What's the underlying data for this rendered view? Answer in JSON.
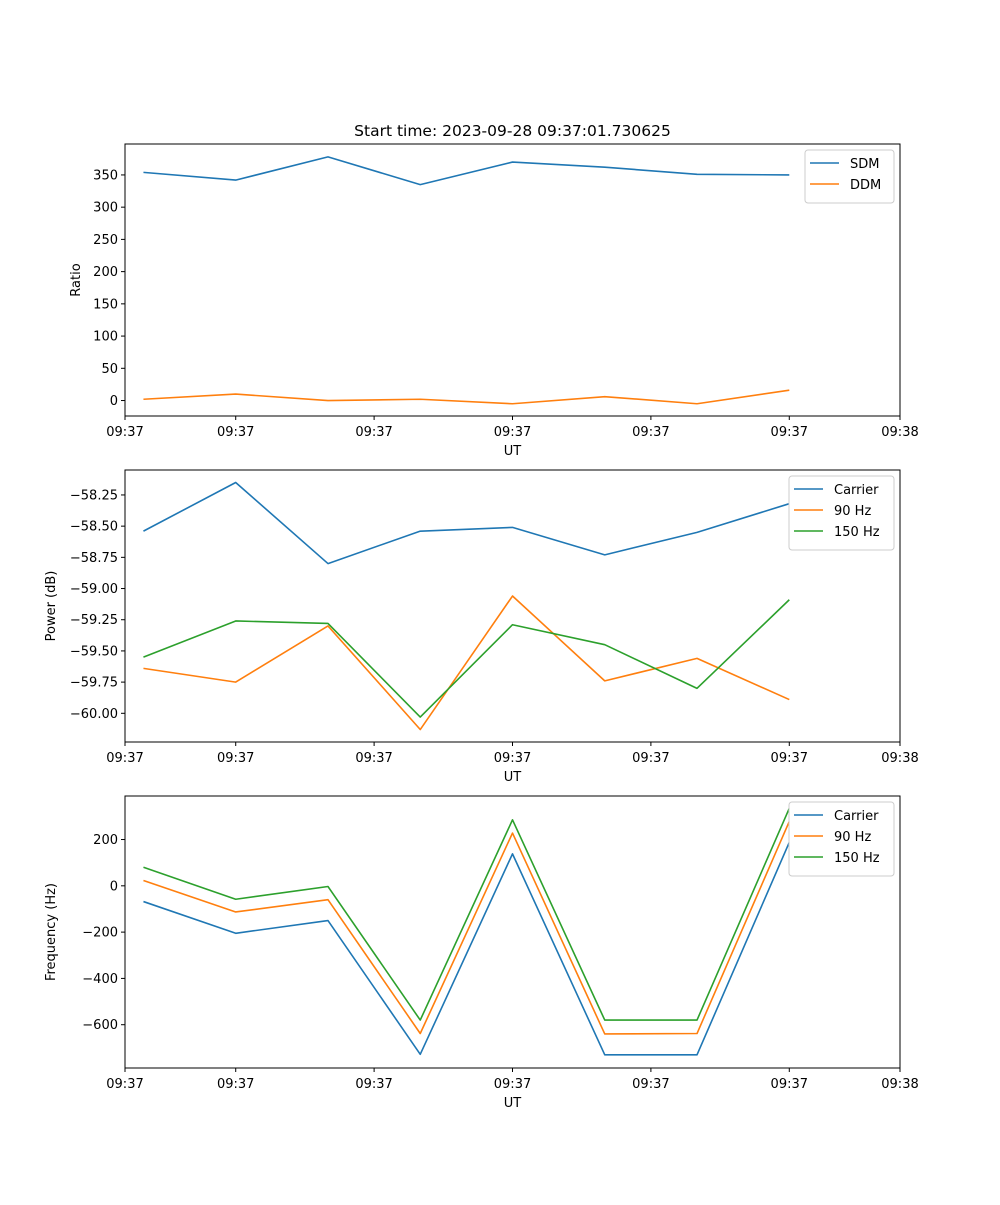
{
  "colors": {
    "c0": "#1f77b4",
    "c1": "#ff7f0e",
    "c2": "#2ca02c"
  },
  "chart_data": [
    {
      "type": "line",
      "title": "Start time: 2023-09-28 09:37:01.730625",
      "xlabel": "UT",
      "ylabel": "Ratio",
      "x": [
        1,
        2,
        3,
        4,
        5,
        6,
        7,
        8
      ],
      "xlim": [
        0.8,
        9.2
      ],
      "xticks": [
        0.8,
        2.0,
        3.5,
        5.0,
        6.5,
        8.0,
        9.2
      ],
      "xtick_labels": [
        "09:37",
        "09:37",
        "09:37",
        "09:37",
        "09:37",
        "09:37",
        "09:38"
      ],
      "ylim": [
        -24,
        398
      ],
      "yticks": [
        0,
        50,
        100,
        150,
        200,
        250,
        300,
        350
      ],
      "ytick_labels": [
        "0",
        "50",
        "100",
        "150",
        "200",
        "250",
        "300",
        "350"
      ],
      "legend_position": "top-right",
      "series": [
        {
          "name": "SDM",
          "color": "#1f77b4",
          "values": [
            354,
            342,
            378,
            335,
            370,
            362,
            351,
            350
          ]
        },
        {
          "name": "DDM",
          "color": "#ff7f0e",
          "values": [
            2,
            10,
            0,
            2,
            -5,
            6,
            -5,
            16
          ]
        }
      ]
    },
    {
      "type": "line",
      "title": "",
      "xlabel": "UT",
      "ylabel": "Power (dB)",
      "x": [
        1,
        2,
        3,
        4,
        5,
        6,
        7,
        8
      ],
      "xlim": [
        0.8,
        9.2
      ],
      "xticks": [
        0.8,
        2.0,
        3.5,
        5.0,
        6.5,
        8.0,
        9.2
      ],
      "xtick_labels": [
        "09:37",
        "09:37",
        "09:37",
        "09:37",
        "09:37",
        "09:37",
        "09:38"
      ],
      "ylim": [
        -60.23,
        -58.05
      ],
      "yticks": [
        -60.0,
        -59.75,
        -59.5,
        -59.25,
        -59.0,
        -58.75,
        -58.5,
        -58.25
      ],
      "ytick_labels": [
        "−60.00",
        "−59.75",
        "−59.50",
        "−59.25",
        "−59.00",
        "−58.75",
        "−58.50",
        "−58.25"
      ],
      "legend_position": "top-right",
      "series": [
        {
          "name": "Carrier",
          "color": "#1f77b4",
          "values": [
            -58.54,
            -58.15,
            -58.8,
            -58.54,
            -58.51,
            -58.73,
            -58.55,
            -58.32
          ]
        },
        {
          "name": "90 Hz",
          "color": "#ff7f0e",
          "values": [
            -59.64,
            -59.75,
            -59.3,
            -60.13,
            -59.06,
            -59.74,
            -59.56,
            -59.89
          ]
        },
        {
          "name": "150 Hz",
          "color": "#2ca02c",
          "values": [
            -59.55,
            -59.26,
            -59.28,
            -60.03,
            -59.29,
            -59.45,
            -59.8,
            -59.09
          ]
        }
      ]
    },
    {
      "type": "line",
      "title": "",
      "xlabel": "UT",
      "ylabel": "Frequency (Hz)",
      "x": [
        1,
        2,
        3,
        4,
        5,
        6,
        7,
        8
      ],
      "xlim": [
        0.8,
        9.2
      ],
      "xticks": [
        0.8,
        2.0,
        3.5,
        5.0,
        6.5,
        8.0,
        9.2
      ],
      "xtick_labels": [
        "09:37",
        "09:37",
        "09:37",
        "09:37",
        "09:37",
        "09:37",
        "09:38"
      ],
      "ylim": [
        -787,
        388
      ],
      "yticks": [
        -600,
        -400,
        -200,
        0,
        200
      ],
      "ytick_labels": [
        "−600",
        "−400",
        "−200",
        "0",
        "200"
      ],
      "legend_position": "top-right",
      "series": [
        {
          "name": "Carrier",
          "color": "#1f77b4",
          "values": [
            -68,
            -205,
            -150,
            -728,
            138,
            -730,
            -730,
            188
          ]
        },
        {
          "name": "90 Hz",
          "color": "#ff7f0e",
          "values": [
            23,
            -113,
            -60,
            -638,
            228,
            -640,
            -638,
            278
          ]
        },
        {
          "name": "150 Hz",
          "color": "#2ca02c",
          "values": [
            80,
            -58,
            -3,
            -580,
            285,
            -580,
            -580,
            335
          ]
        }
      ]
    }
  ]
}
